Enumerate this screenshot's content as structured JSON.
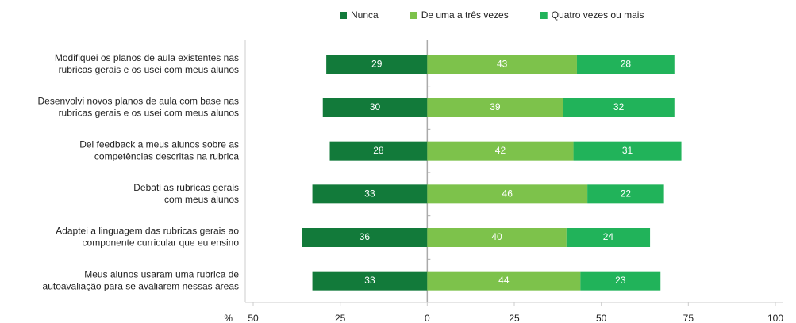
{
  "chart_data": {
    "type": "diverging-stacked-bar",
    "categories": [
      [
        "Modifiquei os planos de aula existentes nas",
        "rubricas gerais e os usei com meus alunos"
      ],
      [
        "Desenvolvi novos planos de aula com base nas",
        "rubricas gerais e os usei com meus alunos"
      ],
      [
        "Dei feedback a meus alunos sobre as",
        "competências descritas na rubrica"
      ],
      [
        "Debati as rubricas gerais",
        "com meus alunos"
      ],
      [
        "Adaptei a linguagem das rubricas gerais ao",
        "componente curricular que eu ensino"
      ],
      [
        "Meus alunos usaram uma rubrica de",
        "autoavaliação para se avaliarem nessas áreas"
      ]
    ],
    "series": [
      {
        "name": "Nunca",
        "color": "#127a3a",
        "side": "left",
        "values": [
          29,
          30,
          28,
          33,
          36,
          33
        ]
      },
      {
        "name": "De uma a três vezes",
        "color": "#7dc24b",
        "side": "right",
        "values": [
          43,
          39,
          42,
          46,
          40,
          44
        ]
      },
      {
        "name": "Quatro vezes ou mais",
        "color": "#21b35a",
        "side": "right",
        "values": [
          28,
          32,
          31,
          22,
          24,
          23
        ]
      }
    ],
    "x_label": "%",
    "xlim": [
      -50,
      100
    ],
    "xticks": [
      {
        "value": -50,
        "label": "50"
      },
      {
        "value": -25,
        "label": "25"
      },
      0,
      25,
      50,
      75,
      100
    ],
    "legend": "top"
  }
}
